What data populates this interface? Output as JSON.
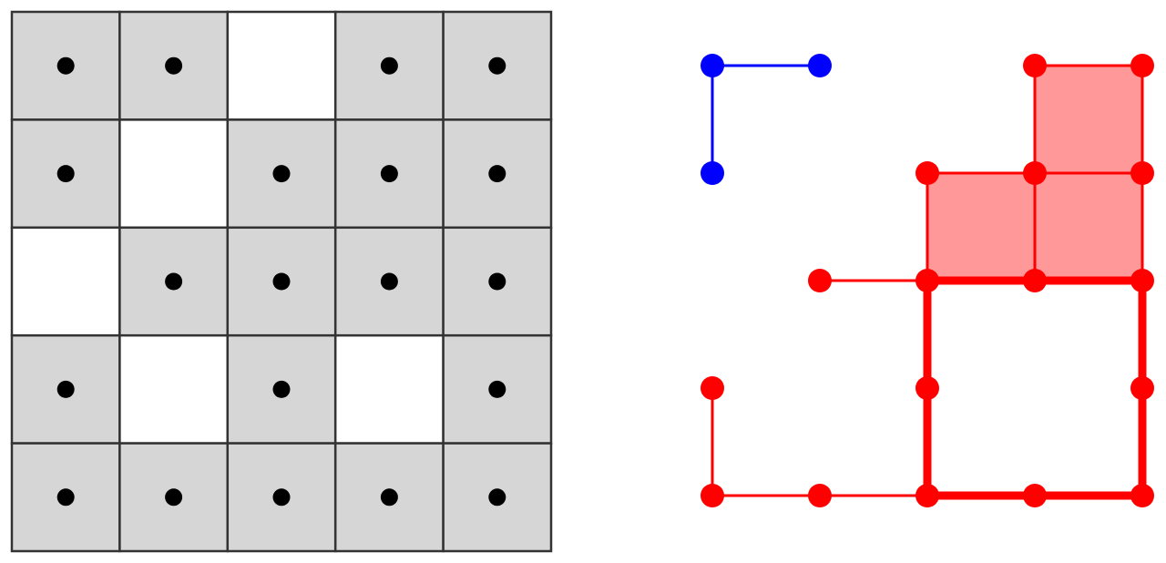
{
  "grid": {
    "rows": 5,
    "cols": 5,
    "occupied": [
      [
        1,
        1,
        0,
        1,
        1
      ],
      [
        1,
        0,
        1,
        1,
        1
      ],
      [
        0,
        1,
        1,
        1,
        1
      ],
      [
        1,
        0,
        1,
        0,
        1
      ],
      [
        1,
        1,
        1,
        1,
        1
      ]
    ],
    "colors": {
      "filled": "#d6d6d6",
      "empty": "#ffffff",
      "line": "#333333",
      "dot": "#000000"
    }
  },
  "complex": {
    "colors": {
      "blue": "#0000ff",
      "red": "#ff0000",
      "face": "#ff9999"
    },
    "blue_component": {
      "vertices": [
        [
          0,
          0
        ],
        [
          1,
          0
        ],
        [
          0,
          1
        ]
      ],
      "edges": [
        [
          [
            0,
            0
          ],
          [
            1,
            0
          ]
        ],
        [
          [
            0,
            0
          ],
          [
            0,
            1
          ]
        ]
      ]
    },
    "red_component": {
      "vertices": [
        [
          3,
          0
        ],
        [
          4,
          0
        ],
        [
          2,
          1
        ],
        [
          3,
          1
        ],
        [
          4,
          1
        ],
        [
          1,
          2
        ],
        [
          2,
          2
        ],
        [
          3,
          2
        ],
        [
          4,
          2
        ],
        [
          0,
          3
        ],
        [
          2,
          3
        ],
        [
          4,
          3
        ],
        [
          0,
          4
        ],
        [
          1,
          4
        ],
        [
          2,
          4
        ],
        [
          3,
          4
        ],
        [
          4,
          4
        ]
      ],
      "edges": [
        [
          [
            3,
            0
          ],
          [
            4,
            0
          ]
        ],
        [
          [
            3,
            0
          ],
          [
            3,
            1
          ]
        ],
        [
          [
            4,
            0
          ],
          [
            4,
            1
          ]
        ],
        [
          [
            2,
            1
          ],
          [
            3,
            1
          ]
        ],
        [
          [
            3,
            1
          ],
          [
            4,
            1
          ]
        ],
        [
          [
            2,
            1
          ],
          [
            2,
            2
          ]
        ],
        [
          [
            3,
            1
          ],
          [
            3,
            2
          ]
        ],
        [
          [
            4,
            1
          ],
          [
            4,
            2
          ]
        ],
        [
          [
            1,
            2
          ],
          [
            2,
            2
          ]
        ],
        [
          [
            0,
            3
          ],
          [
            0,
            4
          ]
        ],
        [
          [
            0,
            4
          ],
          [
            1,
            4
          ]
        ],
        [
          [
            1,
            4
          ],
          [
            2,
            4
          ]
        ]
      ],
      "faces": [
        [
          [
            3,
            0
          ],
          [
            4,
            0
          ],
          [
            4,
            1
          ],
          [
            3,
            1
          ]
        ],
        [
          [
            2,
            1
          ],
          [
            3,
            1
          ],
          [
            3,
            2
          ],
          [
            2,
            2
          ]
        ],
        [
          [
            3,
            1
          ],
          [
            4,
            1
          ],
          [
            4,
            2
          ],
          [
            3,
            2
          ]
        ]
      ],
      "cycle": [
        [
          2,
          2
        ],
        [
          3,
          2
        ],
        [
          4,
          2
        ],
        [
          4,
          3
        ],
        [
          4,
          4
        ],
        [
          3,
          4
        ],
        [
          2,
          4
        ],
        [
          2,
          3
        ]
      ]
    }
  }
}
